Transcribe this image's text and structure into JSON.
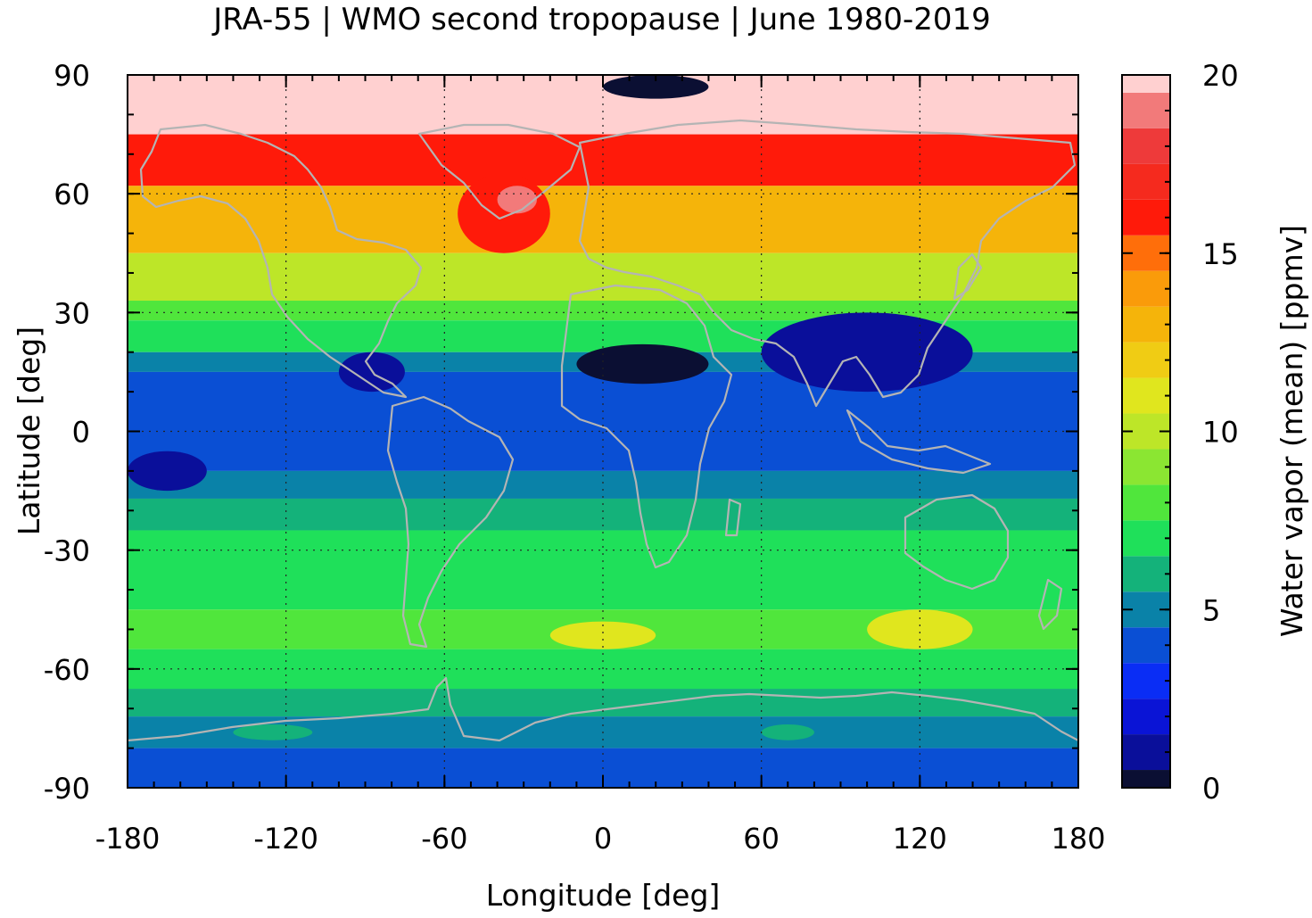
{
  "title": "JRA-55 | WMO second tropopause | June 1980-2019",
  "chart_data": {
    "type": "heatmap",
    "title": "JRA-55 | WMO second tropopause | June 1980-2019",
    "xlabel": "Longitude [deg]",
    "ylabel": "Latitude [deg]",
    "xlim": [
      -180,
      180
    ],
    "ylim": [
      -90,
      90
    ],
    "xticks": [
      "-180",
      "-120",
      "-60",
      "0",
      "60",
      "120",
      "180"
    ],
    "yticks": [
      "90",
      "60",
      "30",
      "0",
      "-30",
      "-60",
      "-90"
    ],
    "grid": true,
    "overlay": "coastlines",
    "colorbar": {
      "label": "Water vapor (mean) [ppmv]",
      "range": [
        0,
        20
      ],
      "tick_labels": [
        "0",
        "5",
        "10",
        "15",
        "20"
      ],
      "step": 1,
      "colors": [
        "#0b0f33",
        "#0a0f9a",
        "#0a14d6",
        "#0a2df5",
        "#0a4fd4",
        "#0a82a8",
        "#14b27a",
        "#1fe05a",
        "#50e63c",
        "#8be632",
        "#bde628",
        "#e0e61e",
        "#f0cc14",
        "#f5b40a",
        "#fa9b0a",
        "#ff6e0a",
        "#ff1a0a",
        "#f52a1e",
        "#ee3a3a",
        "#f27a7a",
        "#ffd0d0"
      ]
    },
    "latitude_bands": [
      {
        "lat": [
          75,
          90
        ],
        "value": 20
      },
      {
        "lat": [
          62,
          75
        ],
        "value": 16
      },
      {
        "lat": [
          45,
          62
        ],
        "value": 13
      },
      {
        "lat": [
          33,
          45
        ],
        "value": 10
      },
      {
        "lat": [
          28,
          33
        ],
        "value": 8
      },
      {
        "lat": [
          20,
          28
        ],
        "value": 7
      },
      {
        "lat": [
          15,
          20
        ],
        "value": 5
      },
      {
        "lat": [
          -10,
          15
        ],
        "value": 4
      },
      {
        "lat": [
          -17,
          -10
        ],
        "value": 5
      },
      {
        "lat": [
          -25,
          -17
        ],
        "value": 6
      },
      {
        "lat": [
          -45,
          -25
        ],
        "value": 7
      },
      {
        "lat": [
          -55,
          -45
        ],
        "value": 8
      },
      {
        "lat": [
          -65,
          -55
        ],
        "value": 7
      },
      {
        "lat": [
          -72,
          -65
        ],
        "value": 6
      },
      {
        "lat": [
          -80,
          -72
        ],
        "value": 5
      },
      {
        "lat": [
          -90,
          -80
        ],
        "value": 4
      }
    ],
    "regional_features": [
      {
        "lon": [
          -55,
          -20
        ],
        "lat": [
          45,
          65
        ],
        "value": 16
      },
      {
        "lon": [
          -40,
          -25
        ],
        "lat": [
          55,
          62
        ],
        "value": 19
      },
      {
        "lon": [
          -10,
          40
        ],
        "lat": [
          12,
          22
        ],
        "value": 0
      },
      {
        "lon": [
          60,
          140
        ],
        "lat": [
          10,
          30
        ],
        "value": 1
      },
      {
        "lon": [
          -100,
          -75
        ],
        "lat": [
          10,
          20
        ],
        "value": 1
      },
      {
        "lon": [
          -180,
          -150
        ],
        "lat": [
          -15,
          -5
        ],
        "value": 1
      },
      {
        "lon": [
          -20,
          20
        ],
        "lat": [
          -55,
          -48
        ],
        "value": 11
      },
      {
        "lon": [
          100,
          140
        ],
        "lat": [
          -55,
          -45
        ],
        "value": 11
      },
      {
        "lon": [
          60,
          80
        ],
        "lat": [
          -78,
          -74
        ],
        "value": 6
      },
      {
        "lon": [
          -140,
          -110
        ],
        "lat": [
          -78,
          -74
        ],
        "value": 6
      },
      {
        "lon": [
          0,
          40
        ],
        "lat": [
          84,
          90
        ],
        "value": 0
      }
    ]
  }
}
